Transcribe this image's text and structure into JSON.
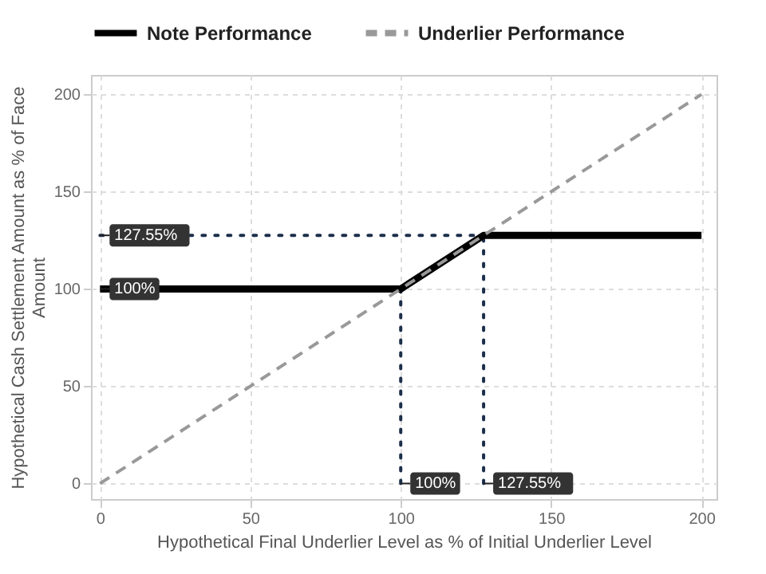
{
  "chart_data": {
    "type": "line",
    "xlabel": "Hypothetical Final Underlier Level as % of Initial Underlier Level",
    "ylabel": "Hypothetical Cash Settlement Amount as % of Face Amount",
    "xlim": [
      -3,
      205
    ],
    "ylim": [
      -8,
      210
    ],
    "xticks": [
      0,
      50,
      100,
      150,
      200
    ],
    "yticks": [
      0,
      50,
      100,
      150,
      200
    ],
    "grid": true,
    "legend": "top",
    "series": [
      {
        "name": "Note Performance",
        "color": "#000000",
        "line_style": "solid",
        "x": [
          0,
          100,
          127.55,
          200
        ],
        "values": [
          100,
          100,
          127.55,
          127.55
        ]
      },
      {
        "name": "Underlier Performance",
        "color": "#999999",
        "line_style": "dashed",
        "x": [
          0,
          200
        ],
        "values": [
          0,
          200
        ]
      },
      {
        "color": "#1c2e4a",
        "line_style": "dotted",
        "x": [
          0,
          127.55
        ],
        "values": [
          127.55,
          127.55
        ]
      },
      {
        "color": "#1c2e4a",
        "line_style": "dotted",
        "x": [
          100,
          100
        ],
        "values": [
          0,
          100
        ]
      },
      {
        "color": "#1c2e4a",
        "line_style": "dotted",
        "x": [
          127.55,
          127.55
        ],
        "values": [
          0,
          127.55
        ]
      }
    ],
    "annotations": [
      {
        "text": "127.55%",
        "x": 0,
        "y": 127.55
      },
      {
        "text": "100%",
        "x": 0,
        "y": 100
      },
      {
        "text": "100%",
        "x": 100,
        "y": 0
      },
      {
        "text": "127.55%",
        "x": 127.55,
        "y": 0
      }
    ]
  }
}
